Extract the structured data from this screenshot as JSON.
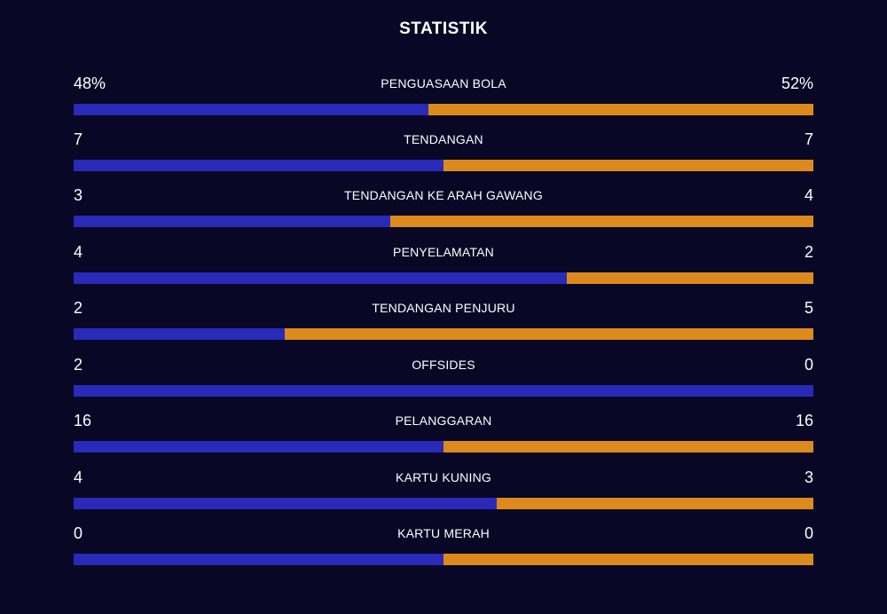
{
  "title": "STATISTIK",
  "colors": {
    "background": "#080725",
    "home": "#2a2ab8",
    "away": "#dd8a1c"
  },
  "stats": [
    {
      "label": "PENGUASAAN BOLA",
      "home": "48%",
      "away": "52%",
      "home_share": 0.48
    },
    {
      "label": "TENDANGAN",
      "home": "7",
      "away": "7",
      "home_share": 0.5
    },
    {
      "label": "TENDANGAN KE ARAH GAWANG",
      "home": "3",
      "away": "4",
      "home_share": 0.4286
    },
    {
      "label": "PENYELAMATAN",
      "home": "4",
      "away": "2",
      "home_share": 0.6667
    },
    {
      "label": "TENDANGAN PENJURU",
      "home": "2",
      "away": "5",
      "home_share": 0.2857
    },
    {
      "label": "OFFSIDES",
      "home": "2",
      "away": "0",
      "home_share": 1.0
    },
    {
      "label": "PELANGGARAN",
      "home": "16",
      "away": "16",
      "home_share": 0.5
    },
    {
      "label": "KARTU KUNING",
      "home": "4",
      "away": "3",
      "home_share": 0.5714
    },
    {
      "label": "KARTU MERAH",
      "home": "0",
      "away": "0",
      "home_share": 0.5
    }
  ]
}
